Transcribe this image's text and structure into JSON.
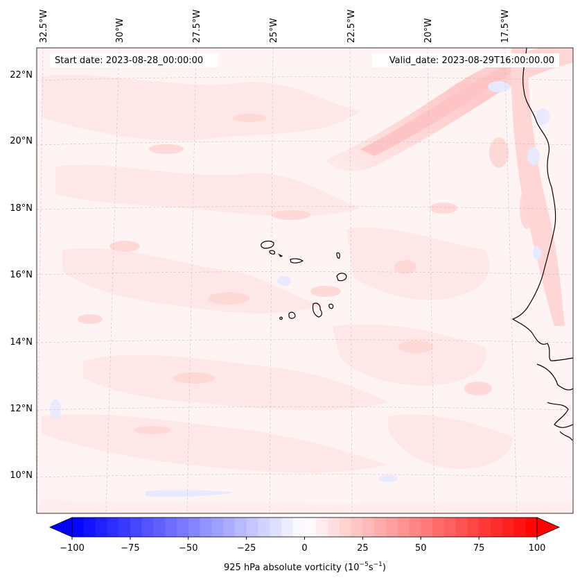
{
  "map": {
    "start_label": "Start date: 2023-08-28_00:00:00",
    "valid_label": "Valid_date: 2023-08-29T16:00:00.00",
    "lon_labels": [
      "32.5°W",
      "30°W",
      "27.5°W",
      "25°W",
      "22.5°W",
      "20°W",
      "17.5°W"
    ],
    "lat_labels": [
      "22°N",
      "20°N",
      "18°N",
      "16°N",
      "14°N",
      "12°N",
      "10°N"
    ]
  },
  "colorbar": {
    "label_main": "925 hPa absolute vorticity (10",
    "label_exp1": "−5",
    "label_mid": "s",
    "label_exp2": "−1",
    "label_end": ")",
    "ticks": [
      "−100",
      "−75",
      "−50",
      "−25",
      "0",
      "25",
      "50",
      "75",
      "100"
    ],
    "tick_values": [
      -100,
      -75,
      -50,
      -25,
      0,
      25,
      50,
      75,
      100
    ],
    "min": -100,
    "max": 100,
    "levels": 41,
    "low_color": "#0000ff",
    "mid_color": "#ffffff",
    "high_color": "#ff0000"
  }
}
